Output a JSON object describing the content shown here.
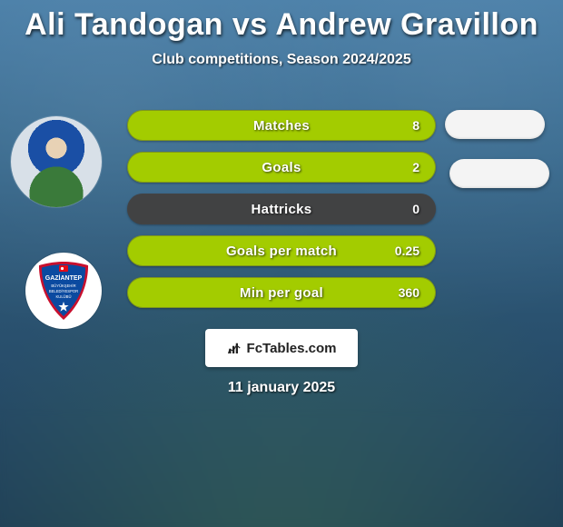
{
  "title_text": "Ali Tandogan vs Andrew Gravillon",
  "subtitle_text": "Club competitions, Season 2024/2025",
  "date_text": "11 january 2025",
  "brand_text": "FcTables.com",
  "pill_bg_empty": "#414243",
  "pill_bg_highlight": "#a3cc00",
  "pill_text_color": "#ffffff",
  "right_pill_bg": "#f4f4f4",
  "logo_bg": "#ffffff",
  "title_color": "#ffffff",
  "badge": {
    "outer_bg": "#ffffff",
    "shield_fill": "#0b4aa0",
    "shield_border": "#c8102e",
    "text_top": "GAZİANTEP",
    "text_color": "#ffffff",
    "star_color": "#ffffff",
    "flag_red": "#e30a17"
  },
  "stats": [
    {
      "label": "Matches",
      "value": "8",
      "highlight": true
    },
    {
      "label": "Goals",
      "value": "2",
      "highlight": true
    },
    {
      "label": "Hattricks",
      "value": "0",
      "highlight": false
    },
    {
      "label": "Goals per match",
      "value": "0.25",
      "highlight": true
    },
    {
      "label": "Min per goal",
      "value": "360",
      "highlight": true
    }
  ]
}
